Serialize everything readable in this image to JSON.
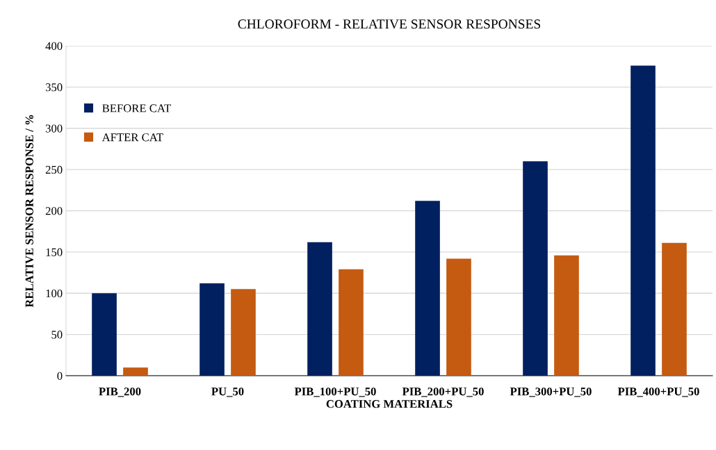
{
  "chart_data": {
    "type": "bar",
    "title": "CHLOROFORM - RELATIVE SENSOR RESPONSES",
    "xlabel": "COATING MATERIALS",
    "ylabel": "RELATIVE SENSOR RESPONSE / %",
    "categories": [
      "PIB_200",
      "PU_50",
      "PIB_100+PU_50",
      "PIB_200+PU_50",
      "PIB_300+PU_50",
      "PIB_400+PU_50"
    ],
    "series": [
      {
        "name": "BEFORE CAT",
        "color": "#002060",
        "values": [
          100,
          112,
          162,
          212,
          260,
          376
        ]
      },
      {
        "name": "AFTER CAT",
        "color": "#c55a11",
        "values": [
          10,
          105,
          129,
          142,
          146,
          161
        ]
      }
    ],
    "ylim": [
      0,
      400
    ],
    "yticks": [
      0,
      50,
      100,
      150,
      200,
      250,
      300,
      350,
      400
    ],
    "grid": "y",
    "legend": "top left"
  }
}
